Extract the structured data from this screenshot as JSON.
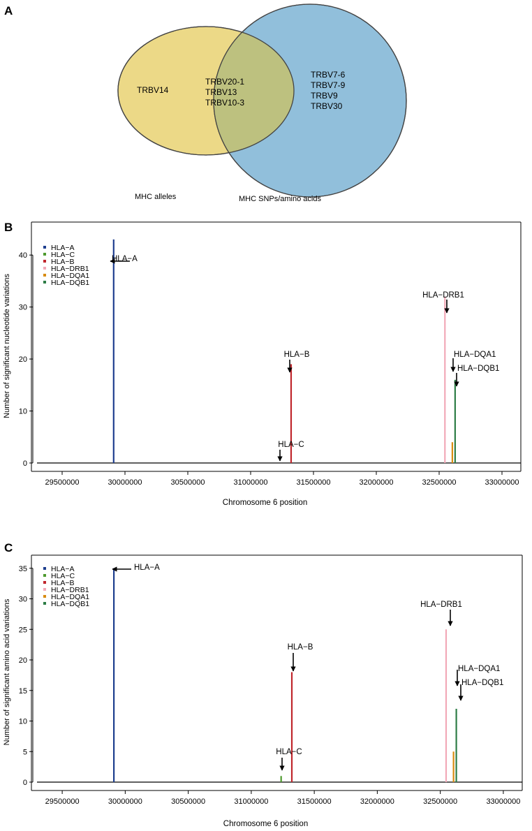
{
  "panels": {
    "a": "A",
    "b": "B",
    "c": "C"
  },
  "venn": {
    "left_only": [
      "TRBV14"
    ],
    "overlap": [
      "TRBV20-1",
      "TRBV13",
      "TRBV10-3"
    ],
    "right_only": [
      "TRBV7-6",
      "TRBV7-9",
      "TRBV9",
      "TRBV30"
    ],
    "left_label": "MHC alleles",
    "right_label": "MHC SNPs/amino acids",
    "left_color": "#ecd987",
    "right_color": "#91bfdb",
    "overlap_color": "#bdc17f"
  },
  "chart_data": [
    {
      "type": "bar",
      "title": "",
      "xlabel": "Chromosome 6 position",
      "ylabel": "Number of significant nucleotide variations",
      "xlim": [
        29300000,
        33150000
      ],
      "ylim": [
        0,
        45
      ],
      "xticks": [
        "29500000",
        "30000000",
        "30500000",
        "31000000",
        "31500000",
        "32000000",
        "32500000",
        "33000000"
      ],
      "yticks": [
        0,
        10,
        20,
        30,
        40
      ],
      "legend": "top-left",
      "series": [
        {
          "name": "HLA−A",
          "color": "#1f3f8f",
          "x": 29910000,
          "value": 43,
          "label": "HLA−A"
        },
        {
          "name": "HLA−C",
          "color": "#4e9a2e",
          "x": 31237000,
          "value": 0,
          "label": "HLA−C"
        },
        {
          "name": "HLA−B",
          "color": "#c0272d",
          "x": 31322000,
          "value": 19,
          "label": "HLA−B"
        },
        {
          "name": "HLA−DRB1",
          "color": "#f2a9b8",
          "x": 32546000,
          "value": 32,
          "label": "HLA−DRB1"
        },
        {
          "name": "HLA−DQA1",
          "color": "#d88c12",
          "x": 32605000,
          "value": 4,
          "label": "HLA−DQA1"
        },
        {
          "name": "HLA−DQB1",
          "color": "#2e7d46",
          "x": 32627000,
          "value": 16,
          "label": "HLA−DQB1"
        }
      ]
    },
    {
      "type": "bar",
      "title": "",
      "xlabel": "Chromosome 6 position",
      "ylabel": "Number of significant amino acid variations",
      "xlim": [
        29300000,
        33150000
      ],
      "ylim": [
        0,
        36
      ],
      "xticks": [
        "29500000",
        "30000000",
        "30500000",
        "31000000",
        "31500000",
        "32000000",
        "32500000",
        "33000000"
      ],
      "yticks": [
        0,
        5,
        10,
        15,
        20,
        25,
        30,
        35
      ],
      "legend": "top-left",
      "series": [
        {
          "name": "HLA−A",
          "color": "#1f3f8f",
          "x": 29910000,
          "value": 35,
          "label": "HLA−A"
        },
        {
          "name": "HLA−C",
          "color": "#4e9a2e",
          "x": 31237000,
          "value": 1,
          "label": "HLA−C"
        },
        {
          "name": "HLA−B",
          "color": "#c0272d",
          "x": 31322000,
          "value": 18,
          "label": "HLA−B"
        },
        {
          "name": "HLA−DRB1",
          "color": "#f2a9b8",
          "x": 32546000,
          "value": 25,
          "label": "HLA−DRB1"
        },
        {
          "name": "HLA−DQA1",
          "color": "#d88c12",
          "x": 32605000,
          "value": 5,
          "label": "HLA−DQA1"
        },
        {
          "name": "HLA−DQB1",
          "color": "#2e7d46",
          "x": 32627000,
          "value": 12,
          "label": "HLA−DQB1"
        }
      ]
    }
  ]
}
